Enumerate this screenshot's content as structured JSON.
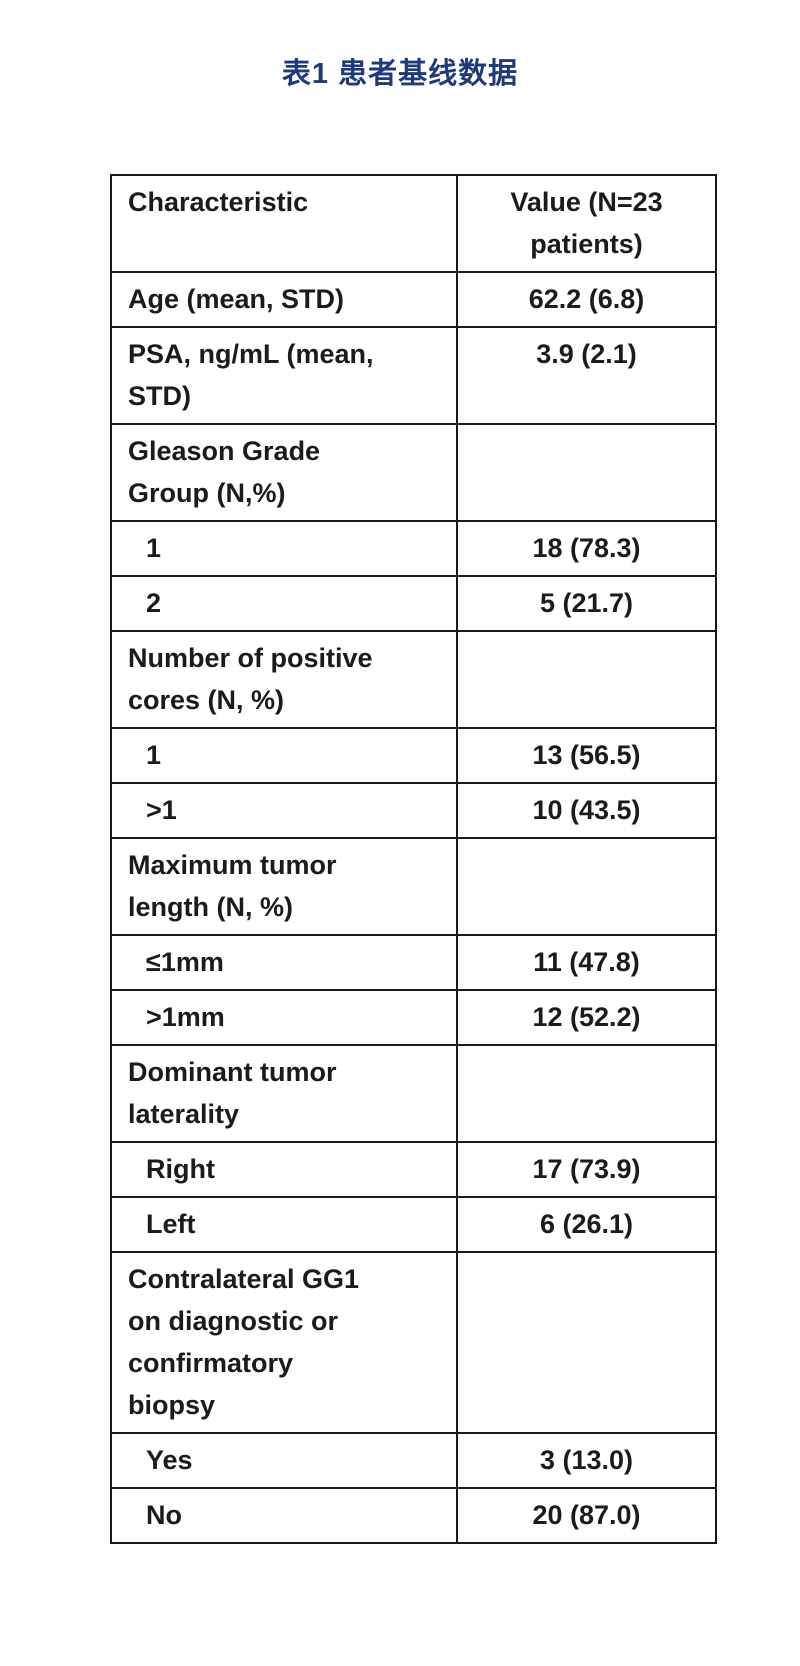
{
  "page": {
    "title": "表1 患者基线数据",
    "title_color": "#1e3a7b"
  },
  "table": {
    "header": {
      "characteristic": "Characteristic",
      "value": "Value (N=23\npatients)"
    },
    "rows": [
      {
        "label": "Age (mean, STD)",
        "value": "62.2 (6.8)"
      },
      {
        "label": "PSA, ng/mL (mean,\nSTD)",
        "value": "3.9 (2.1)"
      },
      {
        "label": "Gleason Grade\nGroup (N,%)",
        "value": ""
      },
      {
        "label": "1",
        "value": "18 (78.3)"
      },
      {
        "label": "2",
        "value": "5 (21.7)"
      },
      {
        "label": "Number of positive\ncores (N, %)",
        "value": ""
      },
      {
        "label": "1",
        "value": "13 (56.5)"
      },
      {
        "label": ">1",
        "value": "10 (43.5)"
      },
      {
        "label": "Maximum tumor\nlength (N, %)",
        "value": ""
      },
      {
        "label": "≤1mm",
        "value": "11 (47.8)"
      },
      {
        "label": ">1mm",
        "value": "12 (52.2)"
      },
      {
        "label": "Dominant tumor\nlaterality",
        "value": ""
      },
      {
        "label": "Right",
        "value": "17 (73.9)"
      },
      {
        "label": "Left",
        "value": "6 (26.1)"
      },
      {
        "label": "Contralateral GG1\non diagnostic or\nconfirmatory\nbiopsy",
        "value": ""
      },
      {
        "label": "Yes",
        "value": "3 (13.0)"
      },
      {
        "label": "No",
        "value": "20 (87.0)"
      }
    ]
  }
}
